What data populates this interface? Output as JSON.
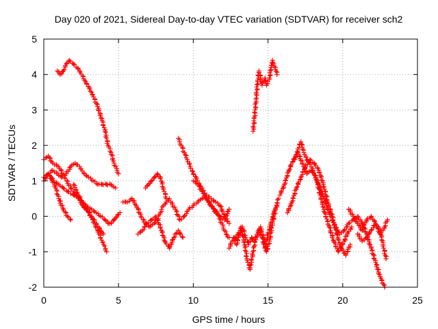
{
  "chart_data": {
    "type": "scatter",
    "title": "Day 020 of 2021, Sidereal Day-to-day VTEC variation (SDTVAR) for receiver sch2",
    "xlabel": "GPS time / hours",
    "ylabel": "SDTVAR / TECUs",
    "xlim": [
      0,
      25
    ],
    "ylim": [
      -2,
      5
    ],
    "xticks": [
      "0",
      "5",
      "10",
      "15",
      "20",
      "25"
    ],
    "yticks": [
      "-2",
      "-1",
      "0",
      "1",
      "2",
      "3",
      "4",
      "5"
    ],
    "grid": true,
    "marker": "+",
    "color": "#ff0000",
    "traces": [
      {
        "x": [
          0.0,
          0.3,
          0.6,
          1.0,
          1.3,
          1.6,
          2.0,
          2.4,
          2.8,
          3.2,
          3.5,
          3.8,
          4.1,
          4.3,
          4.5,
          4.7,
          4.9,
          5.1
        ],
        "y": [
          1.1,
          1.2,
          1.0,
          0.9,
          0.8,
          0.7,
          0.6,
          0.5,
          0.3,
          0.2,
          0.1,
          0.0,
          -0.1,
          -0.2,
          -0.2,
          -0.1,
          0.0,
          0.1
        ]
      },
      {
        "x": [
          0.0,
          0.3,
          0.6,
          1.0,
          1.4,
          1.8,
          2.2,
          2.6,
          3.0,
          3.4,
          3.7,
          4.0,
          4.2
        ],
        "y": [
          1.6,
          1.7,
          1.5,
          1.4,
          1.1,
          0.8,
          0.6,
          0.3,
          0.1,
          -0.2,
          -0.5,
          -0.8,
          -1.0
        ]
      },
      {
        "x": [
          0.0,
          0.3,
          0.6,
          0.9,
          1.2,
          1.5,
          1.8,
          2.1,
          2.4,
          2.7,
          3.0,
          3.3,
          3.6,
          3.9,
          4.2,
          4.5,
          4.8
        ],
        "y": [
          1.0,
          1.2,
          1.3,
          1.2,
          1.1,
          1.2,
          1.4,
          1.5,
          1.4,
          1.2,
          1.1,
          1.0,
          0.9,
          0.9,
          0.9,
          0.9,
          0.8
        ]
      },
      {
        "x": [
          0.9,
          1.1,
          1.3,
          1.5,
          1.7,
          2.0,
          2.4,
          2.8,
          3.2,
          3.6,
          3.9,
          4.1,
          4.3,
          4.5,
          4.7,
          4.9,
          5.0
        ],
        "y": [
          4.1,
          4.0,
          4.1,
          4.3,
          4.4,
          4.3,
          4.1,
          3.8,
          3.5,
          3.1,
          2.7,
          2.4,
          2.0,
          1.8,
          1.5,
          1.3,
          1.2
        ]
      },
      {
        "x": [
          0.5,
          0.8,
          1.0,
          1.3,
          1.6,
          1.8
        ],
        "y": [
          1.1,
          0.8,
          0.5,
          0.2,
          0.0,
          -0.1
        ]
      },
      {
        "x": [
          2.0,
          2.3,
          2.6,
          2.9,
          3.2,
          3.5,
          3.8,
          4.0
        ],
        "y": [
          0.9,
          0.6,
          0.4,
          0.2,
          0.0,
          -0.2,
          -0.4,
          -0.5
        ]
      },
      {
        "x": [
          5.3,
          5.6,
          5.9,
          6.2,
          6.5,
          6.8,
          7.1,
          7.4,
          7.6,
          7.8,
          8.0,
          8.2,
          8.4
        ],
        "y": [
          0.4,
          0.4,
          0.5,
          0.3,
          0.0,
          -0.2,
          -0.3,
          -0.2,
          -0.1,
          0.1,
          0.3,
          0.4,
          0.5
        ]
      },
      {
        "x": [
          6.3,
          6.6,
          6.9,
          7.2,
          7.5,
          7.8,
          8.1,
          8.4,
          8.7,
          9.0,
          9.3
        ],
        "y": [
          -0.5,
          -0.4,
          -0.2,
          -0.1,
          0.0,
          -0.3,
          -0.7,
          -0.9,
          -0.6,
          -0.4,
          -0.6
        ]
      },
      {
        "x": [
          6.8,
          7.0,
          7.2,
          7.4,
          7.6,
          7.8,
          8.0,
          8.2
        ],
        "y": [
          0.8,
          0.9,
          1.0,
          1.1,
          1.2,
          1.1,
          0.8,
          0.5
        ]
      },
      {
        "x": [
          8.5,
          8.8,
          9.1,
          9.4,
          9.7,
          10.0,
          10.3,
          10.6,
          10.9,
          11.2,
          11.5,
          11.8,
          12.1,
          12.4
        ],
        "y": [
          0.4,
          0.2,
          -0.1,
          0.0,
          0.2,
          0.3,
          0.4,
          0.5,
          0.6,
          0.5,
          0.4,
          0.3,
          0.0,
          -0.2
        ]
      },
      {
        "x": [
          9.0,
          9.2,
          9.4,
          9.6,
          9.8,
          10.0,
          10.2,
          10.4,
          10.6,
          10.8,
          11.0,
          11.2,
          11.4,
          11.6,
          11.8,
          12.0,
          12.2,
          12.4
        ],
        "y": [
          2.2,
          2.0,
          1.8,
          1.6,
          1.4,
          1.2,
          1.1,
          0.9,
          0.8,
          0.6,
          0.4,
          0.3,
          0.2,
          0.1,
          -0.1,
          -0.3,
          -0.5,
          -0.6
        ]
      },
      {
        "x": [
          10.0,
          10.3,
          10.6,
          10.9,
          11.2,
          11.5,
          11.8,
          12.1,
          12.4
        ],
        "y": [
          1.0,
          0.9,
          0.7,
          0.5,
          0.3,
          0.1,
          0.0,
          -0.1,
          0.2
        ]
      },
      {
        "x": [
          12.4,
          12.6,
          12.8,
          13.0,
          13.2,
          13.4,
          13.6,
          13.8,
          14.0,
          14.2,
          14.4,
          14.6,
          14.8,
          15.0,
          15.2,
          15.4,
          15.6
        ],
        "y": [
          -0.9,
          -0.7,
          -0.6,
          -0.5,
          -0.3,
          -0.7,
          -1.2,
          -1.5,
          -1.0,
          -0.6,
          -0.4,
          -0.6,
          -0.9,
          -0.5,
          -0.2,
          0.1,
          0.3
        ]
      },
      {
        "x": [
          12.7,
          12.9,
          13.1,
          13.3,
          13.5,
          13.7,
          13.9,
          14.1,
          14.3,
          14.5,
          14.7,
          14.9,
          15.1,
          15.3,
          15.5,
          15.7
        ],
        "y": [
          -0.6,
          -0.8,
          -0.5,
          -0.3,
          -0.6,
          -0.8,
          -0.6,
          -0.7,
          -0.5,
          -0.3,
          -0.6,
          -1.0,
          -0.7,
          -0.2,
          0.2,
          0.5
        ]
      },
      {
        "x": [
          14.0,
          14.1,
          14.2,
          14.3,
          14.4,
          14.5,
          14.6,
          14.7,
          14.8,
          14.9,
          15.0,
          15.1,
          15.2,
          15.3,
          15.4,
          15.5,
          15.6
        ],
        "y": [
          2.4,
          2.8,
          3.3,
          3.8,
          4.1,
          3.9,
          3.7,
          3.8,
          3.9,
          3.7,
          3.8,
          3.9,
          4.2,
          4.4,
          4.3,
          4.2,
          4.0
        ]
      },
      {
        "x": [
          15.8,
          16.1,
          16.4,
          16.7,
          17.0,
          17.3,
          17.6,
          17.9,
          18.2,
          18.5,
          18.8,
          19.1,
          19.4,
          19.7,
          20.0,
          20.3,
          20.6
        ],
        "y": [
          0.6,
          0.9,
          1.3,
          1.6,
          1.8,
          1.5,
          1.2,
          1.3,
          1.1,
          0.6,
          0.1,
          -0.3,
          -0.7,
          -1.0,
          -0.8,
          -0.5,
          -0.3
        ]
      },
      {
        "x": [
          16.3,
          16.6,
          16.9,
          17.2,
          17.5,
          17.8,
          18.1,
          18.4,
          18.7,
          19.0,
          19.3,
          19.6,
          19.9,
          20.2,
          20.5
        ],
        "y": [
          0.1,
          0.4,
          0.8,
          1.1,
          1.4,
          1.6,
          1.5,
          1.3,
          0.9,
          0.4,
          0.0,
          -0.5,
          -0.9,
          -1.1,
          -0.8
        ]
      },
      {
        "x": [
          16.8,
          17.0,
          17.2,
          17.4,
          17.6,
          17.8,
          18.0,
          18.3,
          18.6,
          18.9,
          19.2,
          19.5,
          19.8,
          20.1,
          20.4,
          20.7,
          21.0,
          21.3,
          21.6,
          21.9,
          22.2,
          22.5,
          22.8
        ],
        "y": [
          1.6,
          1.9,
          2.1,
          1.8,
          1.6,
          1.5,
          1.3,
          1.0,
          0.7,
          0.3,
          0.0,
          -0.3,
          -0.5,
          -0.4,
          -0.2,
          -0.1,
          0.0,
          -0.2,
          -0.5,
          -0.9,
          -1.3,
          -1.7,
          -2.0
        ]
      },
      {
        "x": [
          20.4,
          20.7,
          21.0,
          21.3,
          21.6,
          21.9,
          22.2,
          22.5,
          22.8,
          23.0
        ],
        "y": [
          0.2,
          0.0,
          -0.2,
          -0.4,
          -0.1,
          0.0,
          -0.2,
          -0.5,
          -0.3,
          -0.1
        ]
      },
      {
        "x": [
          21.0,
          21.3,
          21.6,
          21.9,
          22.2,
          22.5,
          22.7,
          22.9
        ],
        "y": [
          -0.5,
          -0.7,
          -0.6,
          -0.4,
          -0.2,
          -0.4,
          -0.8,
          -1.2
        ]
      }
    ]
  }
}
